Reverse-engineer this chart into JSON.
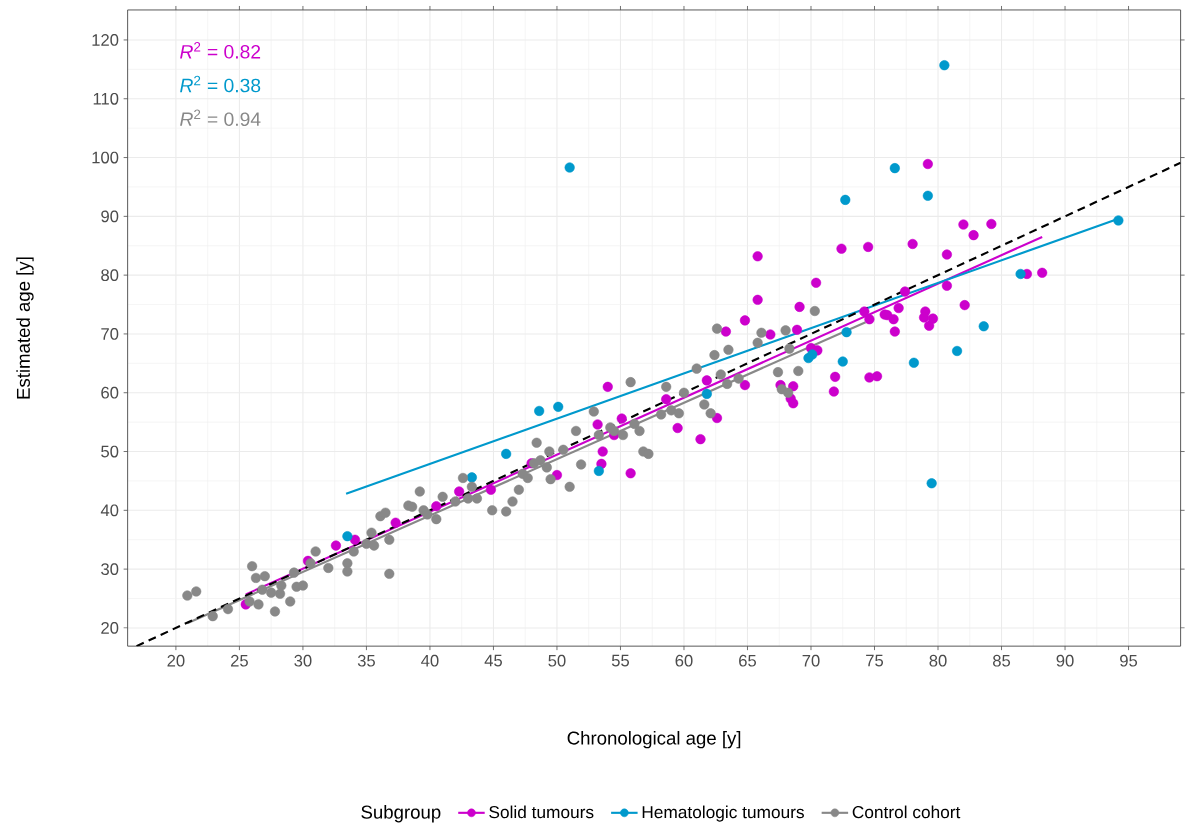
{
  "chart_data": {
    "type": "scatter",
    "xlabel": "Chronological age [y]",
    "ylabel": "Estimated age [y]",
    "legend_title": "Subgroup",
    "xlim": [
      16.2,
      99.1
    ],
    "ylim": [
      16.9,
      125.1
    ],
    "xticks": [
      20,
      25,
      30,
      35,
      40,
      45,
      50,
      55,
      60,
      65,
      70,
      75,
      80,
      85,
      90,
      95
    ],
    "yticks": [
      20,
      30,
      40,
      50,
      60,
      70,
      80,
      90,
      100,
      110,
      120
    ],
    "grid": true,
    "legend": "bottom",
    "annotations": [
      "*R*$^{2}$ = 0.82",
      "*R*$^{2}$ = 0.38",
      "*R*$^{2}$ = 0.94"
    ],
    "series": [
      {
        "name": "Solid tumours",
        "marker": "circle",
        "color": "#cc00cc",
        "x": [
          79.2,
          82,
          84.2,
          82.8,
          78,
          74.5,
          72.4,
          88.2,
          87,
          80.7,
          80.7,
          82.1,
          79,
          79.3,
          79.6,
          65.8,
          70.4,
          65.8,
          64.8,
          69.1,
          63.3,
          66.8,
          68.9,
          70.5,
          70,
          71.9,
          71.8,
          74.6,
          75.2,
          76.6,
          76.5,
          76,
          74.6,
          74.2,
          77.4,
          78.9,
          75.8,
          76.9,
          67.6,
          68.6,
          68.4,
          68.6,
          64.8,
          62.6,
          61.3,
          59.5,
          61.8,
          58.6,
          54,
          55.8,
          53.5,
          53.6,
          55.1,
          53.2,
          54.5,
          50,
          48,
          44.8,
          42.3,
          40.5,
          37.3,
          34.1,
          32.6,
          30.4,
          25.5
        ],
        "values": [
          98.9,
          88.6,
          88.7,
          86.8,
          85.3,
          84.8,
          84.5,
          80.4,
          80.2,
          83.5,
          78.2,
          74.9,
          73.8,
          71.4,
          72.6,
          83.2,
          78.7,
          75.8,
          72.3,
          74.6,
          70.4,
          69.9,
          70.7,
          67.2,
          67.6,
          62.7,
          60.2,
          62.6,
          62.8,
          70.4,
          72.5,
          73.2,
          72.5,
          73.8,
          77.2,
          72.8,
          73.3,
          74.4,
          61.3,
          61.1,
          59,
          58.2,
          61.3,
          55.7,
          52.1,
          54,
          62.1,
          58.9,
          61,
          46.3,
          47.9,
          50,
          55.6,
          54.6,
          52.8,
          46,
          48,
          43.5,
          43.2,
          40.7,
          37.9,
          35,
          34,
          31.4,
          24
        ]
      },
      {
        "name": "Hematologic tumours",
        "marker": "circle",
        "color": "#0099cc",
        "x": [
          51,
          80.5,
          76.6,
          72.7,
          79.2,
          94.2,
          86.5,
          83.6,
          81.5,
          78.1,
          79.5,
          72.5,
          72.8,
          69.8,
          70.1,
          61.8,
          48.6,
          50.1,
          46,
          53.3,
          43.3,
          33.5
        ],
        "values": [
          98.3,
          115.7,
          98.2,
          92.8,
          93.5,
          89.3,
          80.2,
          71.3,
          67.1,
          65.1,
          44.6,
          65.3,
          70.3,
          65.9,
          66.5,
          59.8,
          56.9,
          57.6,
          49.6,
          46.7,
          45.6,
          35.6
        ]
      },
      {
        "name": "Control cohort",
        "marker": "circle",
        "color": "#888888",
        "x": [
          20.9,
          21.6,
          22.9,
          24.1,
          25.8,
          26,
          26.3,
          26.5,
          27,
          26.8,
          27.5,
          27.8,
          28.3,
          28.2,
          29,
          29.5,
          29.3,
          30,
          30.6,
          31,
          32,
          33.5,
          33.5,
          34,
          35,
          35.4,
          35.6,
          36.1,
          36.5,
          36.8,
          36.8,
          38.3,
          38.6,
          39.2,
          39.5,
          39.8,
          40.5,
          41,
          42,
          42.6,
          43,
          43.3,
          43.7,
          44.9,
          46,
          46.5,
          47,
          47.3,
          47.7,
          48.2,
          48.4,
          48.7,
          49.2,
          49.4,
          49.5,
          50.5,
          51,
          51.5,
          51.9,
          52.9,
          53.3,
          54.2,
          54.5,
          55.2,
          55.8,
          56.1,
          56.5,
          56.8,
          57.2,
          58.2,
          58.6,
          59,
          59.6,
          60,
          61,
          62.1,
          61.6,
          62.4,
          62.9,
          62.6,
          63.4,
          63.5,
          64.3,
          65.8,
          66.1,
          67.4,
          67.7,
          68.2,
          68,
          68.3,
          69,
          70.3
        ],
        "values": [
          25.5,
          26.2,
          22,
          23.2,
          24.5,
          30.5,
          28.5,
          24,
          28.8,
          26.5,
          26,
          22.8,
          27.2,
          25.8,
          24.5,
          27,
          29.4,
          27.2,
          31,
          33,
          30.2,
          31,
          29.6,
          33,
          34.3,
          36.2,
          34,
          39,
          39.6,
          35,
          29.2,
          40.8,
          40.6,
          43.2,
          40,
          39.3,
          38.5,
          42.3,
          41.5,
          45.5,
          42,
          44,
          42,
          40,
          39.8,
          41.5,
          43.5,
          46.2,
          45.5,
          48,
          51.5,
          48.5,
          47.3,
          50,
          45.3,
          50.3,
          44,
          53.5,
          47.8,
          56.8,
          52.8,
          54.1,
          53.5,
          52.8,
          61.8,
          54.7,
          53.5,
          50,
          49.6,
          56.3,
          61,
          57,
          56.5,
          60,
          64.1,
          56.5,
          58,
          66.4,
          63.1,
          70.9,
          61.5,
          67.3,
          62.4,
          68.5,
          70.2,
          63.5,
          60.6,
          60,
          70.6,
          67.5,
          63.7,
          73.9
        ]
      },
      {
        "type": "line",
        "color": "#cc00cc",
        "x": [
          25.5,
          88.2
        ],
        "values": [
          25.7,
          86.5
        ]
      },
      {
        "type": "line",
        "color": "#0099cc",
        "x": [
          33.4,
          94.2
        ],
        "values": [
          42.8,
          89.6
        ]
      },
      {
        "type": "line",
        "color": "#888888",
        "x": [
          20.9,
          74.3
        ],
        "values": [
          20.8,
          72.0
        ]
      },
      {
        "type": "line",
        "color": "#000000",
        "line_style": "dashed",
        "x": [
          16.9,
          99.1
        ],
        "values": [
          16.9,
          99.1
        ]
      }
    ]
  }
}
